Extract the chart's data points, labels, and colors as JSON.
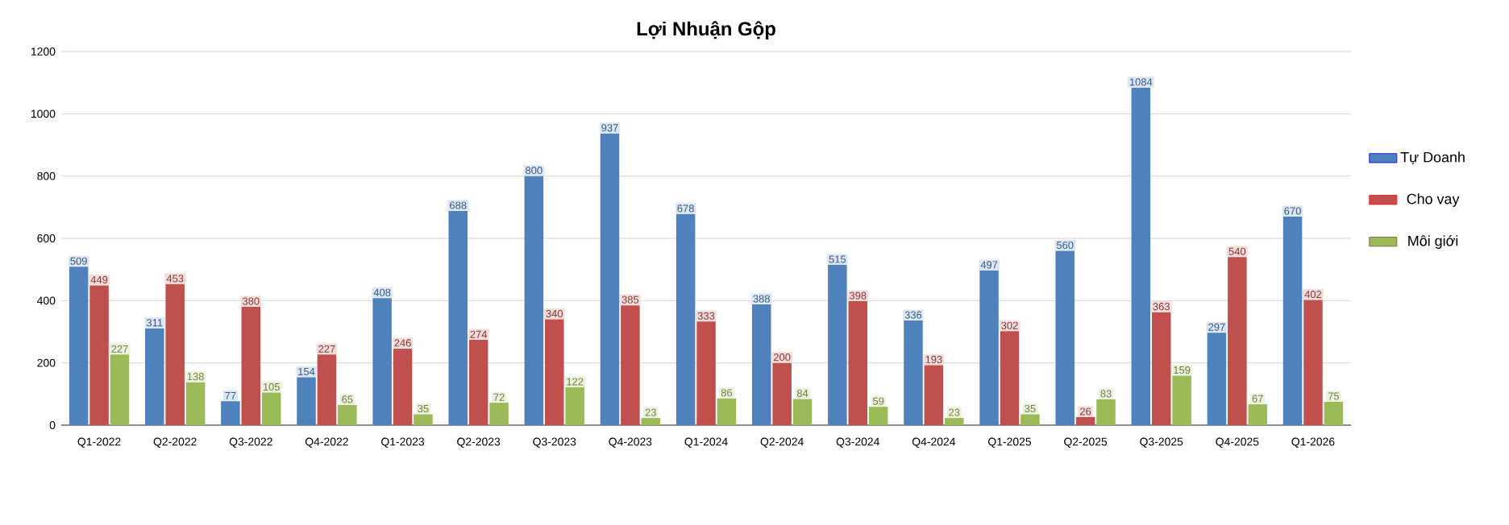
{
  "chart_data": {
    "type": "bar",
    "title": "Lợi Nhuận Gộp",
    "categories": [
      "Q1-2022",
      "Q2-2022",
      "Q3-2022",
      "Q4-2022",
      "Q1-2023",
      "Q2-2023",
      "Q3-2023",
      "Q4-2023",
      "Q1-2024",
      "Q2-2024",
      "Q3-2024",
      "Q4-2024",
      "Q1-2025",
      "Q2-2025",
      "Q3-2025",
      "Q4-2025",
      "Q1-2026"
    ],
    "series": [
      {
        "name": "Tự Doanh",
        "color": "#4f81bd",
        "values": [
          509,
          311,
          77,
          154,
          408,
          688,
          800,
          937,
          678,
          388,
          515,
          336,
          497,
          560,
          1084,
          297,
          670
        ]
      },
      {
        "name": "Cho vay",
        "color": "#c0504d",
        "values": [
          449,
          453,
          380,
          227,
          246,
          274,
          340,
          385,
          333,
          200,
          398,
          193,
          302,
          26,
          363,
          540,
          402
        ]
      },
      {
        "name": "Môi giới",
        "color": "#9bbb59",
        "values": [
          227,
          138,
          105,
          65,
          35,
          72,
          122,
          23,
          86,
          84,
          59,
          23,
          35,
          83,
          159,
          67,
          75
        ]
      }
    ],
    "ylim": [
      0,
      1200
    ],
    "yticks": [
      0,
      200,
      400,
      600,
      800,
      1000,
      1200
    ],
    "grid": "y",
    "legend": "right",
    "data_labels": true
  }
}
